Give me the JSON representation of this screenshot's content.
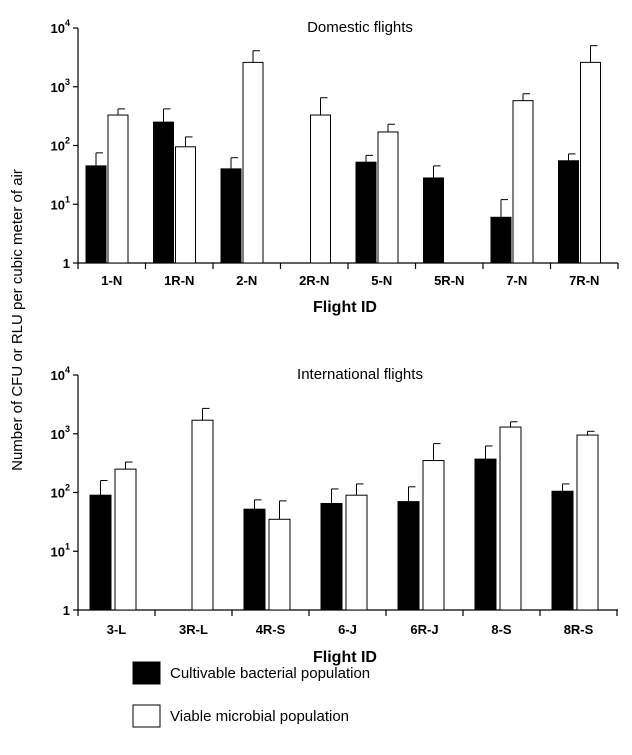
{
  "ylabel": "Number of CFU or RLU per cubic meter of air",
  "legend": [
    {
      "label": "Cultivable bacterial population",
      "color": "#000000"
    },
    {
      "label": "Viable microbial population",
      "color": "#ffffff"
    }
  ],
  "chart_data": [
    {
      "type": "bar",
      "title": "Domestic flights",
      "xlabel": "Flight ID",
      "yscale": "log",
      "ylim": [
        1,
        10000
      ],
      "yticks": [
        {
          "base": "1",
          "exp": ""
        },
        {
          "base": "10",
          "exp": "1"
        },
        {
          "base": "10",
          "exp": "2"
        },
        {
          "base": "10",
          "exp": "3"
        },
        {
          "base": "10",
          "exp": "4"
        }
      ],
      "categories": [
        "1-N",
        "1R-N",
        "2-N",
        "2R-N",
        "5-N",
        "5R-N",
        "7-N",
        "7R-N"
      ],
      "series": [
        {
          "key": "cultivable",
          "color": "#000000",
          "values": [
            45,
            250,
            40,
            null,
            52,
            28,
            6,
            55
          ],
          "errors": [
            75,
            420,
            62,
            null,
            68,
            45,
            12,
            72
          ]
        },
        {
          "key": "viable",
          "color": "#ffffff",
          "values": [
            330,
            95,
            2600,
            330,
            170,
            null,
            580,
            2600
          ],
          "errors": [
            420,
            140,
            4100,
            650,
            230,
            null,
            760,
            5000
          ]
        }
      ]
    },
    {
      "type": "bar",
      "title": "International flights",
      "xlabel": "Flight ID",
      "yscale": "log",
      "ylim": [
        1,
        10000
      ],
      "yticks": [
        {
          "base": "1",
          "exp": ""
        },
        {
          "base": "10",
          "exp": "1"
        },
        {
          "base": "10",
          "exp": "2"
        },
        {
          "base": "10",
          "exp": "3"
        },
        {
          "base": "10",
          "exp": "4"
        }
      ],
      "categories": [
        "3-L",
        "3R-L",
        "4R-S",
        "6-J",
        "6R-J",
        "8-S",
        "8R-S"
      ],
      "series": [
        {
          "key": "cultivable",
          "color": "#000000",
          "values": [
            90,
            null,
            52,
            65,
            70,
            370,
            105
          ],
          "errors": [
            160,
            null,
            75,
            115,
            125,
            620,
            140
          ]
        },
        {
          "key": "viable",
          "color": "#ffffff",
          "values": [
            250,
            1700,
            35,
            90,
            350,
            1300,
            950
          ],
          "errors": [
            330,
            2700,
            72,
            140,
            680,
            1600,
            1100
          ]
        }
      ]
    }
  ]
}
